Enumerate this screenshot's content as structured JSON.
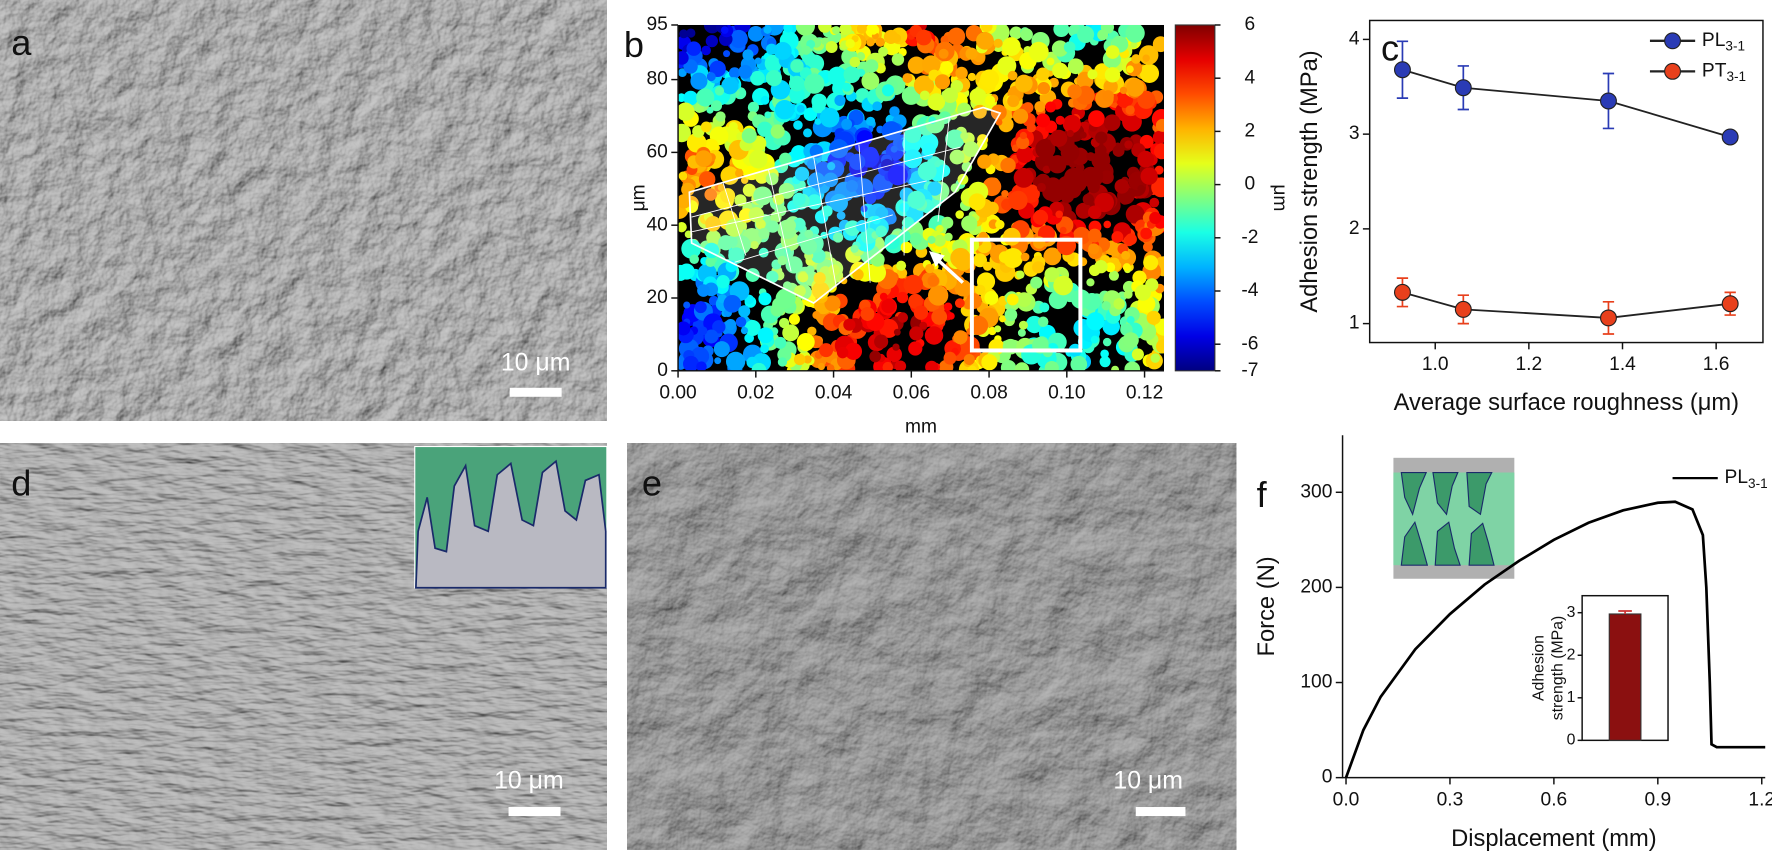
{
  "panels": {
    "a": {
      "label": "a",
      "scale_bar": "10 μm"
    },
    "b": {
      "label": "b"
    },
    "c": {
      "label": "c"
    },
    "d": {
      "label": "d",
      "scale_bar": "10 μm"
    },
    "e": {
      "label": "e",
      "scale_bar": "10 μm"
    },
    "f": {
      "label": "f"
    }
  },
  "chart_data": [
    {
      "type": "surface-map",
      "xlabel": "mm",
      "ylabel": "μm",
      "xlim": [
        0,
        0.125
      ],
      "xticks": [
        {
          "value": 0,
          "label": "0.00"
        },
        0.02,
        0.04,
        0.06,
        0.08,
        {
          "value": 0.1,
          "label": "0.10"
        },
        0.12
      ],
      "ylim": [
        0,
        95
      ],
      "yticks": [
        0,
        20,
        40,
        60,
        80,
        95
      ],
      "colorbar": {
        "label": "μm",
        "lim": [
          -7,
          6
        ],
        "ticks": [
          -7,
          -6,
          -4,
          -2,
          0,
          2,
          4,
          6
        ]
      }
    },
    {
      "type": "line",
      "xlabel": "Average surface roughness  (μm)",
      "ylabel": "Adhesion strength (MPa)",
      "xlim": [
        0.86,
        1.7
      ],
      "xticks": [
        {
          "value": 1,
          "label": "1.0"
        },
        1.2,
        1.4,
        1.6
      ],
      "ylim": [
        0.8,
        4.2
      ],
      "yticks": [
        1,
        2,
        3,
        4
      ],
      "legend": "upper right",
      "series": [
        {
          "name": "PL",
          "name_subscript": "3-1",
          "color": "#2a3bb5",
          "x": [
            0.93,
            1.06,
            1.37,
            1.63
          ],
          "values": [
            3.68,
            3.49,
            3.35,
            2.97
          ],
          "errors": [
            0.3,
            0.23,
            0.29,
            0.02
          ]
        },
        {
          "name": "PT",
          "name_subscript": "3-1",
          "color": "#e8401c",
          "x": [
            0.93,
            1.06,
            1.37,
            1.63
          ],
          "values": [
            1.33,
            1.15,
            1.06,
            1.21
          ],
          "errors": [
            0.15,
            0.15,
            0.17,
            0.12
          ]
        }
      ]
    },
    {
      "type": "line",
      "xlabel": "Displacement (mm)",
      "ylabel": "Force (N)",
      "xlim": [
        -0.01,
        1.21
      ],
      "xticks": [
        {
          "value": 0,
          "label": "0.0"
        },
        0.3,
        0.6,
        0.9,
        1.2
      ],
      "ylim": [
        0,
        360
      ],
      "yticks": [
        0,
        100,
        200,
        300
      ],
      "legend": "upper right",
      "series": [
        {
          "name": "PL",
          "name_subscript": "3-1",
          "color": "#000000",
          "x": [
            0,
            0.05,
            0.1,
            0.2,
            0.3,
            0.4,
            0.5,
            0.6,
            0.7,
            0.8,
            0.9,
            0.95,
            1.0,
            1.03,
            1.04,
            1.05,
            1.055,
            1.07,
            1.2,
            1.21
          ],
          "values": [
            0,
            50,
            85,
            135,
            172,
            203,
            228,
            250,
            268,
            281,
            289,
            290,
            282,
            255,
            200,
            100,
            35,
            32,
            32,
            32
          ]
        }
      ],
      "inset": {
        "type": "bar",
        "ylabel": [
          "Adhesion",
          "strength (MPa)"
        ],
        "values": [
          2.97
        ],
        "errors": [
          0.07
        ],
        "color": "#8b1010",
        "ylim": [
          0,
          3.4
        ],
        "yticks": [
          0,
          1,
          2,
          3
        ]
      }
    }
  ]
}
